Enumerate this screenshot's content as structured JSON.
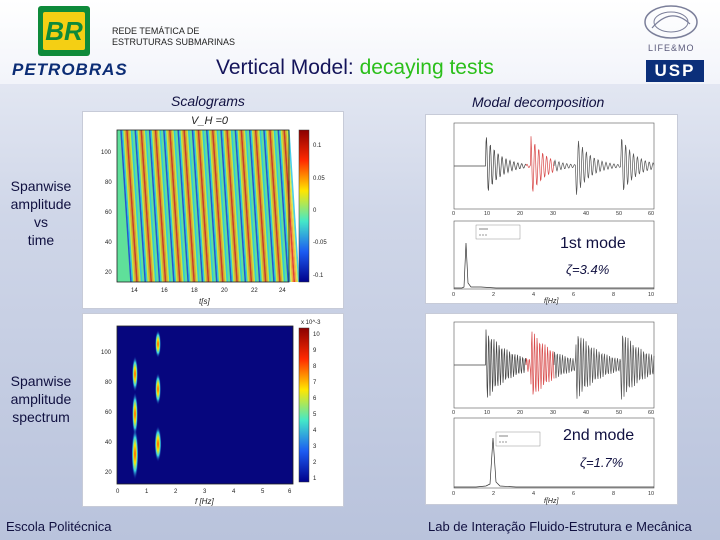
{
  "header": {
    "logo_text": "BR",
    "brand": "PETROBRAS",
    "network_line1": "REDE TEMÁTICA DE",
    "network_line2": "ESTRUTURAS SUBMARINAS",
    "title_prefix": "Vertical Model: ",
    "title_accent": "decaying tests",
    "lab_logo_text": "LIFE&MO",
    "university_logo_text": "USP"
  },
  "columns": {
    "left": "Scalograms",
    "right": "Modal decomposition"
  },
  "rows": [
    {
      "label": [
        "Spanwise",
        "amplitude",
        "vs",
        "time"
      ]
    },
    {
      "label": [
        "Spanwise",
        "amplitude",
        "spectrum"
      ]
    }
  ],
  "scalogram_top": {
    "title": "V_H =0",
    "x_label": "t[s]",
    "x_ticks": [
      "14",
      "16",
      "18",
      "20",
      "22",
      "24"
    ],
    "y_ticks": [
      "100",
      "80",
      "60",
      "40",
      "20"
    ],
    "colorbar_ticks": [
      "0.1",
      "0.05",
      "0",
      "-0.05",
      "-0.1"
    ]
  },
  "scalogram_bottom": {
    "x_label": "f [Hz]",
    "x_ticks": [
      "0",
      "1",
      "2",
      "3",
      "4",
      "5",
      "6"
    ],
    "y_ticks": [
      "100",
      "80",
      "60",
      "40",
      "20"
    ],
    "colorbar_exp": "x 10^-3",
    "colorbar_ticks": [
      "10",
      "9",
      "8",
      "7",
      "6",
      "5",
      "4",
      "3",
      "2",
      "1"
    ]
  },
  "modal_1": {
    "time_x_ticks": [
      "0",
      "10",
      "20",
      "30",
      "40",
      "50",
      "60"
    ],
    "freq_x_ticks": [
      "0",
      "2",
      "4",
      "6",
      "8",
      "10"
    ],
    "freq_x_label": "f[Hz]",
    "mode_label": "1st mode",
    "damping_label": "ζ=3.4%"
  },
  "modal_2": {
    "time_x_ticks": [
      "0",
      "10",
      "20",
      "30",
      "40",
      "50",
      "60"
    ],
    "freq_x_ticks": [
      "0",
      "2",
      "4",
      "6",
      "8",
      "10"
    ],
    "freq_x_label": "f[Hz]",
    "mode_label": "2nd mode",
    "damping_label": "ζ=1.7%"
  },
  "footer": {
    "left": "Escola Politécnica",
    "right": "Lab de Interação Fluido-Estrutura e Mecânica"
  }
}
